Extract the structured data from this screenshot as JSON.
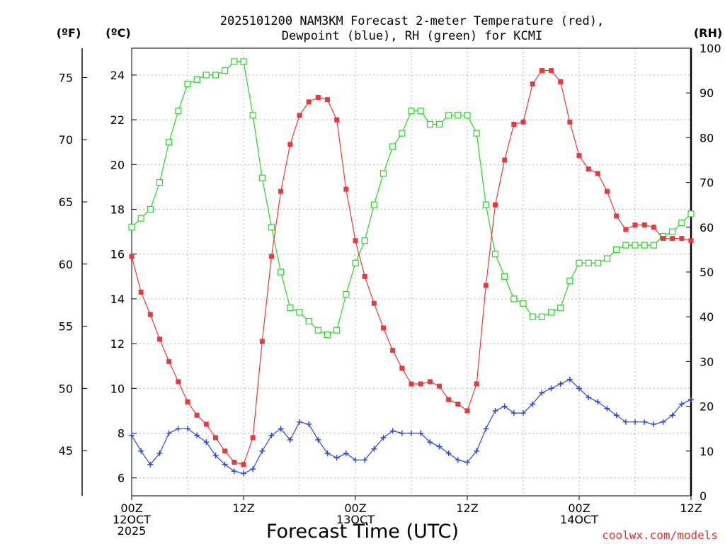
{
  "chart_data": {
    "type": "line",
    "title_line1": "2025101200 NAM3KM Forecast 2-meter Temperature (red),",
    "title_line2": "Dewpoint (blue), RH (green) for KCMI",
    "xlabel": "Forecast Time (UTC)",
    "credit": "coolwx.com/models",
    "unit_labels": {
      "f": "(ºF)",
      "c": "(ºC)",
      "rh": "(RH)"
    },
    "colors": {
      "temperature": "#e83a3a",
      "dewpoint": "#2c44e0",
      "rh": "#2bd42b",
      "axes": "#000000",
      "grid": "#a0a0a0",
      "credit": "#e03030"
    },
    "x_ticks": [
      {
        "hour": 0,
        "lines": [
          "00Z",
          "12OCT",
          "2025"
        ]
      },
      {
        "hour": 12,
        "lines": [
          "12Z"
        ]
      },
      {
        "hour": 24,
        "lines": [
          "00Z",
          "13OCT"
        ]
      },
      {
        "hour": 36,
        "lines": [
          "12Z"
        ]
      },
      {
        "hour": 48,
        "lines": [
          "00Z",
          "14OCT"
        ]
      },
      {
        "hour": 60,
        "lines": [
          "12Z"
        ]
      }
    ],
    "x_range_hours": [
      0,
      60
    ],
    "celsius_ticks": [
      6,
      8,
      10,
      12,
      14,
      16,
      18,
      20,
      22,
      24
    ],
    "celsius_range": [
      5.2,
      25.2
    ],
    "fahrenheit_ticks": [
      45,
      50,
      55,
      60,
      65,
      70,
      75
    ],
    "rh_ticks": [
      0,
      10,
      20,
      30,
      40,
      50,
      60,
      70,
      80,
      90,
      100
    ],
    "rh_range": [
      0,
      100
    ],
    "series": [
      {
        "name": "2-meter Temperature",
        "units": "C",
        "marker": "filled-square",
        "values": [
          15.9,
          14.3,
          13.3,
          12.2,
          11.2,
          10.3,
          9.4,
          8.8,
          8.4,
          7.8,
          7.2,
          6.7,
          6.6,
          7.8,
          12.1,
          15.9,
          18.8,
          20.9,
          22.2,
          22.8,
          23.0,
          22.9,
          22.0,
          18.9,
          16.6,
          15.0,
          13.8,
          12.7,
          11.7,
          10.9,
          10.2,
          10.2,
          10.3,
          10.1,
          9.5,
          9.3,
          9.0,
          10.2,
          14.6,
          18.2,
          20.2,
          21.8,
          21.9,
          23.6,
          24.2,
          24.2,
          23.7,
          21.9,
          20.4,
          19.8,
          19.6,
          18.8,
          17.7,
          17.1,
          17.3,
          17.3,
          17.2,
          16.7,
          16.7,
          16.7,
          16.6
        ]
      },
      {
        "name": "Dewpoint",
        "units": "C",
        "marker": "plus",
        "values": [
          7.9,
          7.2,
          6.6,
          7.1,
          8.0,
          8.2,
          8.2,
          7.9,
          7.6,
          7.0,
          6.6,
          6.3,
          6.2,
          6.4,
          7.2,
          7.9,
          8.2,
          7.7,
          8.5,
          8.4,
          7.7,
          7.1,
          6.9,
          7.1,
          6.8,
          6.8,
          7.3,
          7.8,
          8.1,
          8.0,
          8.0,
          8.0,
          7.6,
          7.4,
          7.1,
          6.8,
          6.7,
          7.2,
          8.2,
          9.0,
          9.2,
          8.9,
          8.9,
          9.3,
          9.8,
          10.0,
          10.2,
          10.4,
          10.0,
          9.6,
          9.4,
          9.1,
          8.8,
          8.5,
          8.5,
          8.5,
          8.4,
          8.5,
          8.8,
          9.3,
          9.5
        ]
      },
      {
        "name": "RH",
        "units": "%",
        "marker": "open-square",
        "values": [
          60,
          62,
          64,
          70,
          79,
          86,
          92,
          93,
          94,
          94,
          95,
          97,
          97,
          85,
          71,
          60,
          50,
          42,
          41,
          39,
          37,
          36,
          37,
          45,
          52,
          57,
          65,
          72,
          78,
          81,
          86,
          86,
          83,
          83,
          85,
          85,
          85,
          81,
          65,
          54,
          49,
          44,
          43,
          40,
          40,
          41,
          42,
          48,
          52,
          52,
          52,
          53,
          55,
          56,
          56,
          56,
          56,
          58,
          59,
          61,
          63
        ]
      }
    ]
  }
}
